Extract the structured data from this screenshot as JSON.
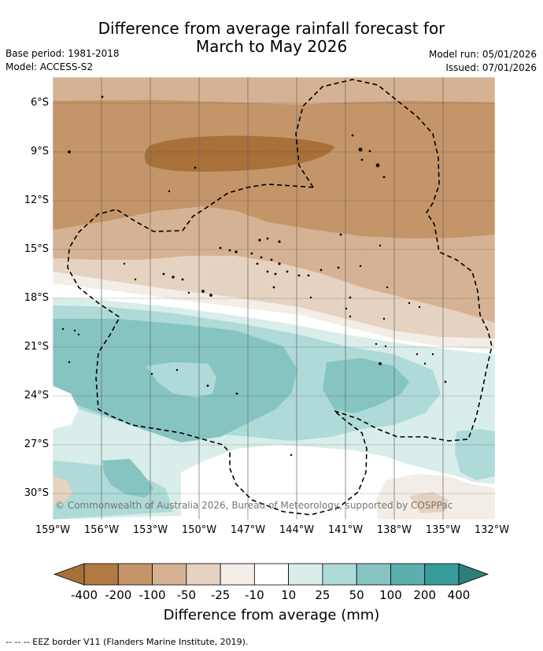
{
  "title": {
    "line1": "Difference from average rainfall forecast for",
    "line2": "March to May 2026"
  },
  "meta": {
    "base_period": "Base period: 1981-2018",
    "model": "Model: ACCESS-S2",
    "model_run": "Model run: 05/01/2026",
    "issued": "Issued: 07/01/2026"
  },
  "map": {
    "lon_labels": [
      "159°W",
      "156°W",
      "153°W",
      "150°W",
      "147°W",
      "144°W",
      "141°W",
      "138°W",
      "135°W",
      "132°W"
    ],
    "lat_labels": [
      "6°S",
      "9°S",
      "12°S",
      "15°S",
      "18°S",
      "21°S",
      "24°S",
      "27°S",
      "30°S"
    ],
    "copyright": "© Commonwealth of Australia 2026, Bureau of Meteorology, supported by COSPPac"
  },
  "colorbar": {
    "labels": [
      "-400",
      "-200",
      "-100",
      "-50",
      "-25",
      "-10",
      "10",
      "25",
      "50",
      "100",
      "200",
      "400"
    ],
    "colors": [
      "#a8713a",
      "#b17a44",
      "#c49569",
      "#d5b293",
      "#e6d2c0",
      "#f2ede6",
      "#ffffff",
      "#d9edea",
      "#aedad7",
      "#86c4c2",
      "#5cafad",
      "#379b99",
      "#2e7d7a"
    ],
    "title": "Difference from average (mm)"
  },
  "legend": {
    "eez": "-- -- -- EEZ border V11 (Flanders Marine Institute, 2019)."
  }
}
